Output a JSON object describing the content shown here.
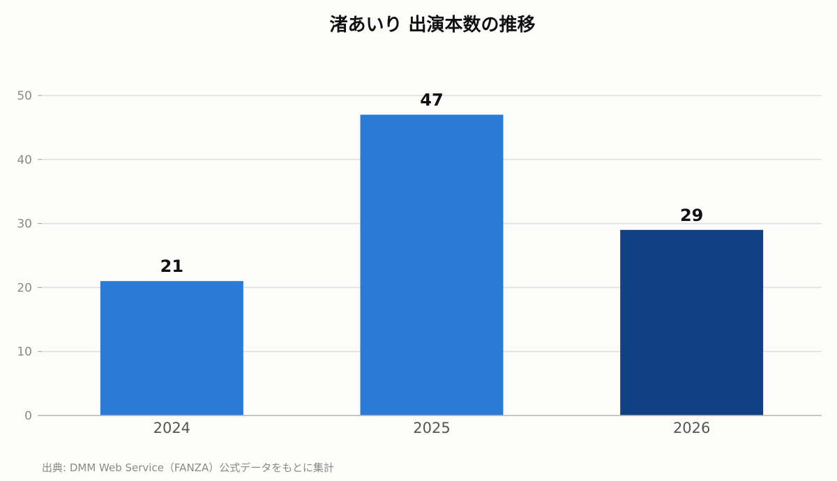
{
  "chart_data": {
    "type": "bar",
    "title": "渚あいり 出演本数の推移",
    "categories": [
      "2024",
      "2025",
      "2026"
    ],
    "values": [
      21,
      47,
      29
    ],
    "bar_colors": [
      "#2a7ad6",
      "#2a7ad6",
      "#114185"
    ],
    "ylim": [
      0,
      50
    ],
    "yticks": [
      "0",
      "10",
      "20",
      "30",
      "40",
      "50"
    ],
    "xlabel": "",
    "ylabel": "",
    "grid": true,
    "legend": "none"
  },
  "source_note": "出典: DMM Web Service（FANZA）公式データをもとに集計"
}
